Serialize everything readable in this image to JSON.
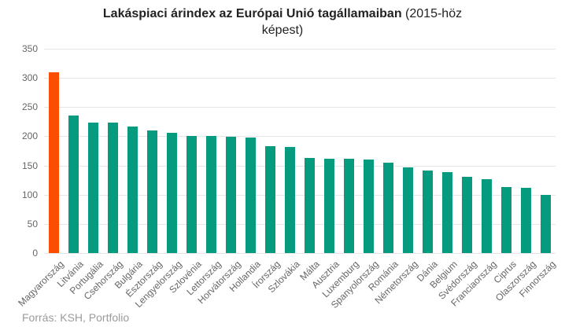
{
  "title": {
    "bold": "Lakáspiaci árindex az Európai Unió tagállamaiban",
    "tail1": "(2015-höz",
    "tail2": "képest)"
  },
  "source_label": "Forrás: KSH, Portfolio",
  "chart_data": {
    "type": "bar",
    "title": "Lakáspiaci árindex az Európai Unió tagállamaiban (2015-höz képest)",
    "categories": [
      "Magyarország",
      "Litvánia",
      "Portugália",
      "Csehország",
      "Bulgária",
      "Észtország",
      "Lengyelország",
      "Szlovénia",
      "Lettország",
      "Horvátország",
      "Hollandia",
      "Írország",
      "Szlovákia",
      "Málta",
      "Ausztria",
      "Luxemburg",
      "Spanyolország",
      "Románia",
      "Németország",
      "Dánia",
      "Belgium",
      "Svédország",
      "Franciaország",
      "Ciprus",
      "Olaszország",
      "Finnország"
    ],
    "values": [
      310,
      235,
      224,
      223,
      217,
      210,
      206,
      201,
      200,
      199,
      198,
      183,
      182,
      163,
      162,
      162,
      160,
      155,
      147,
      141,
      139,
      131,
      126,
      113,
      112,
      100
    ],
    "highlight_index": 0,
    "highlight_color": "#fc4e00",
    "bar_color": "#069b7f",
    "grid_color": "#e6e6e6",
    "ylim": [
      0,
      350
    ],
    "yticks": [
      0,
      50,
      100,
      150,
      200,
      250,
      300,
      350
    ],
    "grid": true,
    "legend": false,
    "xlabel": "",
    "ylabel": "",
    "source": "Forrás: KSH, Portfolio"
  }
}
